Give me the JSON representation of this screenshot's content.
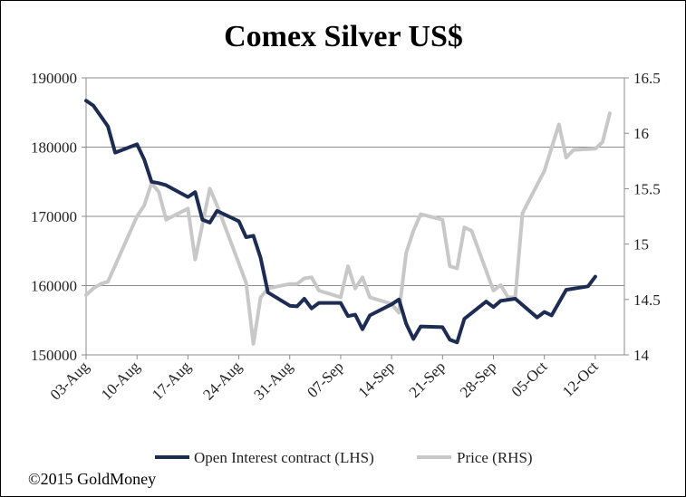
{
  "chart_data": {
    "type": "line",
    "title": "Comex Silver US$",
    "xlabel": "",
    "ylabel_left": "",
    "ylabel_right": "",
    "x_tick_labels": [
      "03-Aug",
      "10-Aug",
      "17-Aug",
      "24-Aug",
      "31-Aug",
      "07-Sep",
      "14-Sep",
      "21-Sep",
      "28-Sep",
      "05-Oct",
      "12-Oct"
    ],
    "x_range_days": [
      0,
      74
    ],
    "ylim_left": [
      150000,
      190000
    ],
    "yticks_left": [
      "190000",
      "180000",
      "170000",
      "160000",
      "150000"
    ],
    "ylim_right": [
      14,
      16.5
    ],
    "yticks_right": [
      "16.5",
      "16",
      "15.5",
      "15",
      "14.5",
      "14"
    ],
    "grid": "horizontal",
    "legend_position": "bottom",
    "series": [
      {
        "name": "Open Interest contract (LHS)",
        "axis": "left",
        "color": "#1c2c52",
        "points": [
          [
            0,
            186700
          ],
          [
            1,
            186000
          ],
          [
            2,
            184500
          ],
          [
            3,
            183000
          ],
          [
            4,
            179200
          ],
          [
            7,
            180400
          ],
          [
            8,
            178200
          ],
          [
            9,
            175000
          ],
          [
            10,
            174800
          ],
          [
            11,
            174500
          ],
          [
            14,
            172800
          ],
          [
            15,
            173500
          ],
          [
            16,
            169500
          ],
          [
            17,
            169100
          ],
          [
            18,
            170800
          ],
          [
            21,
            169300
          ],
          [
            22,
            167000
          ],
          [
            23,
            167200
          ],
          [
            24,
            164000
          ],
          [
            25,
            159000
          ],
          [
            28,
            157100
          ],
          [
            29,
            157000
          ],
          [
            30,
            158100
          ],
          [
            31,
            156700
          ],
          [
            32,
            157500
          ],
          [
            35,
            157500
          ],
          [
            36,
            155600
          ],
          [
            37,
            155800
          ],
          [
            38,
            153700
          ],
          [
            39,
            155700
          ],
          [
            42,
            157300
          ],
          [
            43,
            158000
          ],
          [
            44,
            154500
          ],
          [
            45,
            152300
          ],
          [
            46,
            154100
          ],
          [
            49,
            154000
          ],
          [
            50,
            152200
          ],
          [
            51,
            151800
          ],
          [
            52,
            155200
          ],
          [
            55,
            157700
          ],
          [
            56,
            156900
          ],
          [
            57,
            157800
          ],
          [
            59,
            158100
          ],
          [
            62,
            155400
          ],
          [
            63,
            156200
          ],
          [
            64,
            155700
          ],
          [
            66,
            159400
          ],
          [
            69,
            159900
          ],
          [
            70,
            161300
          ]
        ]
      },
      {
        "name": "Price (RHS)",
        "axis": "right",
        "color": "#c8c8c8",
        "points": [
          [
            0,
            14.54
          ],
          [
            1,
            14.6
          ],
          [
            2,
            14.64
          ],
          [
            3,
            14.66
          ],
          [
            7,
            15.25
          ],
          [
            8,
            15.35
          ],
          [
            9,
            15.55
          ],
          [
            10,
            15.47
          ],
          [
            11,
            15.22
          ],
          [
            14,
            15.32
          ],
          [
            15,
            14.86
          ],
          [
            17,
            15.5
          ],
          [
            18,
            15.35
          ],
          [
            22,
            14.65
          ],
          [
            23,
            14.1
          ],
          [
            24,
            14.52
          ],
          [
            25,
            14.6
          ],
          [
            28,
            14.64
          ],
          [
            29,
            14.64
          ],
          [
            30,
            14.69
          ],
          [
            31,
            14.7
          ],
          [
            32,
            14.58
          ],
          [
            35,
            14.52
          ],
          [
            36,
            14.8
          ],
          [
            37,
            14.6
          ],
          [
            38,
            14.7
          ],
          [
            39,
            14.52
          ],
          [
            42,
            14.46
          ],
          [
            43,
            14.38
          ],
          [
            44,
            14.92
          ],
          [
            45,
            15.12
          ],
          [
            46,
            15.27
          ],
          [
            49,
            15.22
          ],
          [
            50,
            14.8
          ],
          [
            51,
            14.78
          ],
          [
            52,
            15.15
          ],
          [
            53,
            15.12
          ],
          [
            56,
            14.58
          ],
          [
            57,
            14.63
          ],
          [
            58,
            14.52
          ],
          [
            59,
            14.52
          ],
          [
            60,
            15.28
          ],
          [
            63,
            15.66
          ],
          [
            65,
            16.08
          ],
          [
            66,
            15.78
          ],
          [
            67,
            15.85
          ],
          [
            70,
            15.86
          ],
          [
            71,
            15.92
          ],
          [
            72,
            16.18
          ]
        ]
      }
    ],
    "copyright": "©2015 GoldMoney"
  }
}
